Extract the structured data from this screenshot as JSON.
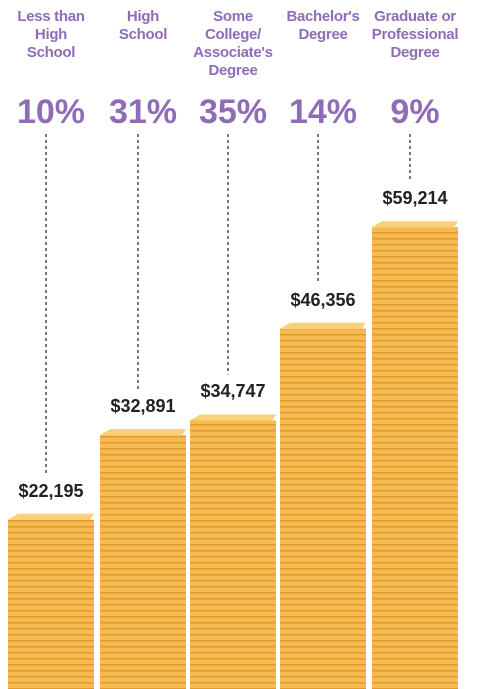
{
  "chart_data": {
    "type": "bar",
    "categories": [
      "Less than\nHigh\nSchool",
      "High\nSchool",
      "Some\nCollege/\nAssociate's\nDegree",
      "Bachelor's\nDegree",
      "Graduate or\nProfessional\nDegree"
    ],
    "shares": [
      10,
      31,
      35,
      14,
      9
    ],
    "share_labels": [
      "10%",
      "31%",
      "35%",
      "14%",
      "9%"
    ],
    "values": [
      22195,
      32891,
      34747,
      46356,
      59214
    ],
    "value_labels": [
      "$22,195",
      "$32,891",
      "$34,747",
      "$46,356",
      "$59,214"
    ],
    "color": "#f5b548"
  }
}
